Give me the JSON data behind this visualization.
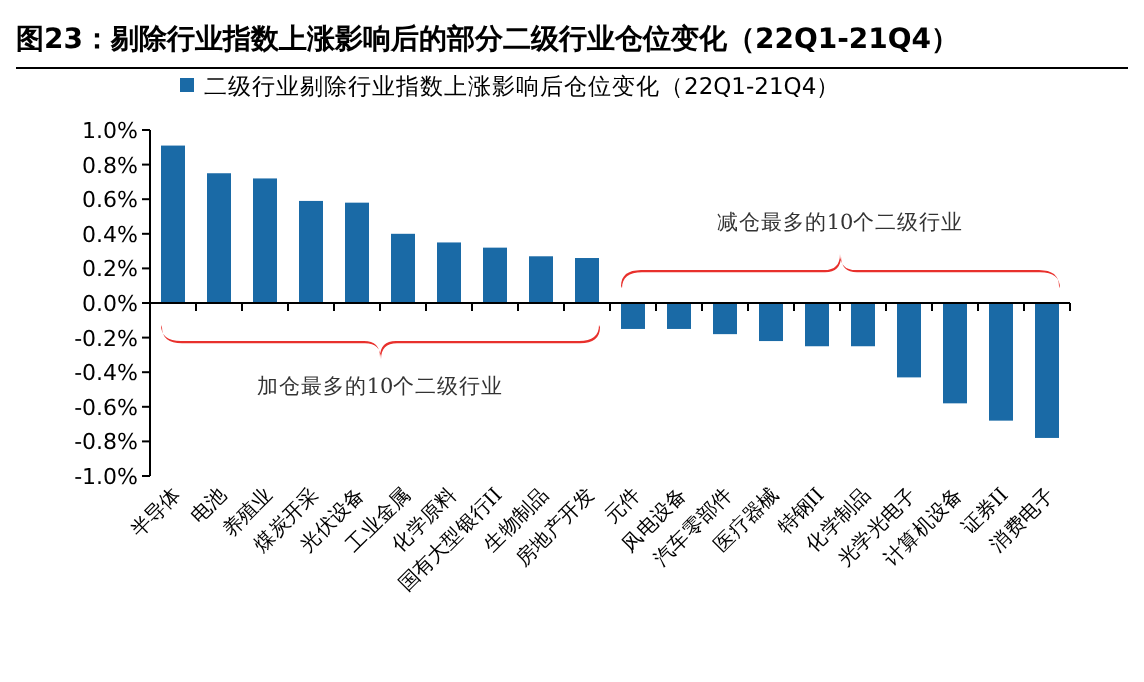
{
  "chart_data": {
    "type": "bar",
    "title": "图23：剔除行业指数上涨影响后的部分二级行业仓位变化（22Q1-21Q4）",
    "categories": [
      "半导体",
      "电池",
      "养殖业",
      "煤炭开采",
      "光伏设备",
      "工业金属",
      "化学原料",
      "国有大型银行II",
      "生物制品",
      "房地产开发",
      "元件",
      "风电设备",
      "汽车零部件",
      "医疗器械",
      "特钢II",
      "化学制品",
      "光学光电子",
      "计算机设备",
      "证券II",
      "消费电子"
    ],
    "series": [
      {
        "name": "二级行业剔除行业指数上涨影响后仓位变化（22Q1-21Q4）",
        "color": "#1a6aa6",
        "values": [
          0.91,
          0.75,
          0.72,
          0.59,
          0.58,
          0.4,
          0.35,
          0.32,
          0.27,
          0.26,
          -0.15,
          -0.15,
          -0.18,
          -0.22,
          -0.25,
          -0.25,
          -0.43,
          -0.58,
          -0.68,
          -0.78
        ]
      }
    ],
    "ylim": [
      -1.0,
      1.0
    ],
    "yticks": [
      {
        "value": -1.0,
        "label": "-1.0%"
      },
      {
        "value": -0.8,
        "label": "-0.8%"
      },
      {
        "value": -0.6,
        "label": "-0.6%"
      },
      {
        "value": -0.4,
        "label": "-0.4%"
      },
      {
        "value": -0.2,
        "label": "-0.2%"
      },
      {
        "value": 0.0,
        "label": "0.0%"
      },
      {
        "value": 0.2,
        "label": "0.2%"
      },
      {
        "value": 0.4,
        "label": "0.4%"
      },
      {
        "value": 0.6,
        "label": "0.6%"
      },
      {
        "value": 0.8,
        "label": "0.8%"
      },
      {
        "value": 1.0,
        "label": "1.0%"
      }
    ],
    "legend": "top",
    "annotations": [
      "加仓最多的10个二级行业",
      "减仓最多的10个二级行业"
    ]
  }
}
